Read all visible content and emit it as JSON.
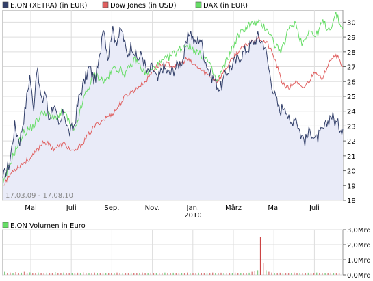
{
  "chart_data": [
    {
      "type": "line",
      "legend": [
        {
          "name": "E.ON (XETRA) (in EUR)",
          "color": "#33406a"
        },
        {
          "name": "Dow Jones (in USD)",
          "color": "#e06060"
        },
        {
          "name": "DAX (in EUR)",
          "color": "#66dd66"
        }
      ],
      "y_ticks": [
        "18",
        "19",
        "20",
        "21",
        "22",
        "23",
        "24",
        "25",
        "26",
        "27",
        "28",
        "29",
        "30"
      ],
      "ylim": [
        18,
        30.8
      ],
      "x_ticks": [
        "Mai",
        "Juli",
        "Sep.",
        "Nov.",
        "Jan.",
        "März",
        "Mai",
        "Juli"
      ],
      "x_year_label": "2010",
      "date_range_label": "17.03.09 - 17.08.10",
      "grid": true,
      "series": [
        {
          "name": "E.ON (XETRA) (in EUR)",
          "color": "#33406a",
          "fill": "#e8eaf7",
          "points": [
            [
              0,
              19.5
            ],
            [
              0.02,
              20.5
            ],
            [
              0.035,
              23.0
            ],
            [
              0.05,
              22.0
            ],
            [
              0.065,
              24.0
            ],
            [
              0.08,
              26.5
            ],
            [
              0.09,
              24.0
            ],
            [
              0.1,
              27.0
            ],
            [
              0.115,
              24.5
            ],
            [
              0.125,
              25.5
            ],
            [
              0.135,
              23.5
            ],
            [
              0.15,
              24.5
            ],
            [
              0.165,
              22.8
            ],
            [
              0.18,
              24.0
            ],
            [
              0.195,
              22.5
            ],
            [
              0.21,
              23.0
            ],
            [
              0.225,
              25.0
            ],
            [
              0.24,
              26.0
            ],
            [
              0.255,
              27.0
            ],
            [
              0.27,
              26.0
            ],
            [
              0.285,
              27.5
            ],
            [
              0.295,
              30.0
            ],
            [
              0.31,
              27.5
            ],
            [
              0.32,
              29.5
            ],
            [
              0.335,
              28.8
            ],
            [
              0.35,
              29.5
            ],
            [
              0.365,
              27.8
            ],
            [
              0.38,
              28.5
            ],
            [
              0.395,
              27.5
            ],
            [
              0.41,
              27.8
            ],
            [
              0.425,
              26.5
            ],
            [
              0.44,
              27.0
            ],
            [
              0.455,
              26.0
            ],
            [
              0.47,
              27.0
            ],
            [
              0.49,
              26.5
            ],
            [
              0.51,
              27.0
            ],
            [
              0.53,
              27.5
            ],
            [
              0.55,
              29.5
            ],
            [
              0.565,
              28.5
            ],
            [
              0.58,
              29.0
            ],
            [
              0.595,
              27.5
            ],
            [
              0.61,
              26.5
            ],
            [
              0.625,
              26.0
            ],
            [
              0.64,
              25.5
            ],
            [
              0.655,
              26.5
            ],
            [
              0.67,
              27.0
            ],
            [
              0.69,
              27.5
            ],
            [
              0.71,
              28.0
            ],
            [
              0.73,
              28.5
            ],
            [
              0.75,
              29.0
            ],
            [
              0.77,
              28.5
            ],
            [
              0.785,
              26.5
            ],
            [
              0.8,
              25.0
            ],
            [
              0.815,
              24.0
            ],
            [
              0.83,
              24.5
            ],
            [
              0.845,
              23.0
            ],
            [
              0.86,
              23.8
            ],
            [
              0.875,
              22.5
            ],
            [
              0.89,
              22.0
            ],
            [
              0.905,
              22.8
            ],
            [
              0.92,
              22.0
            ],
            [
              0.935,
              22.5
            ],
            [
              0.95,
              23.0
            ],
            [
              0.965,
              23.8
            ],
            [
              0.98,
              23.2
            ],
            [
              1.0,
              22.8
            ]
          ]
        },
        {
          "name": "Dow Jones (in USD)",
          "color": "#e06060",
          "points": [
            [
              0,
              19.0
            ],
            [
              0.03,
              20.0
            ],
            [
              0.06,
              20.5
            ],
            [
              0.09,
              21.0
            ],
            [
              0.12,
              22.0
            ],
            [
              0.15,
              21.5
            ],
            [
              0.18,
              21.8
            ],
            [
              0.21,
              21.2
            ],
            [
              0.24,
              22.0
            ],
            [
              0.27,
              23.0
            ],
            [
              0.3,
              23.5
            ],
            [
              0.33,
              24.0
            ],
            [
              0.36,
              25.0
            ],
            [
              0.39,
              25.5
            ],
            [
              0.42,
              26.0
            ],
            [
              0.45,
              27.0
            ],
            [
              0.48,
              27.2
            ],
            [
              0.51,
              27.0
            ],
            [
              0.54,
              27.5
            ],
            [
              0.57,
              27.0
            ],
            [
              0.6,
              26.5
            ],
            [
              0.63,
              26.0
            ],
            [
              0.66,
              27.0
            ],
            [
              0.69,
              28.0
            ],
            [
              0.72,
              28.5
            ],
            [
              0.75,
              29.0
            ],
            [
              0.78,
              28.5
            ],
            [
              0.8,
              27.5
            ],
            [
              0.82,
              26.0
            ],
            [
              0.84,
              25.5
            ],
            [
              0.86,
              26.0
            ],
            [
              0.88,
              25.5
            ],
            [
              0.9,
              26.0
            ],
            [
              0.92,
              26.8
            ],
            [
              0.94,
              26.0
            ],
            [
              0.96,
              27.5
            ],
            [
              0.98,
              27.8
            ],
            [
              1.0,
              27.0
            ]
          ]
        },
        {
          "name": "DAX (in EUR)",
          "color": "#66dd66",
          "points": [
            [
              0,
              19.0
            ],
            [
              0.03,
              21.0
            ],
            [
              0.06,
              22.5
            ],
            [
              0.09,
              23.0
            ],
            [
              0.12,
              24.0
            ],
            [
              0.15,
              23.5
            ],
            [
              0.18,
              24.0
            ],
            [
              0.21,
              22.5
            ],
            [
              0.24,
              25.0
            ],
            [
              0.27,
              26.5
            ],
            [
              0.3,
              26.0
            ],
            [
              0.33,
              27.0
            ],
            [
              0.36,
              26.5
            ],
            [
              0.39,
              27.5
            ],
            [
              0.42,
              26.5
            ],
            [
              0.45,
              27.0
            ],
            [
              0.48,
              27.5
            ],
            [
              0.51,
              28.0
            ],
            [
              0.54,
              28.5
            ],
            [
              0.57,
              28.0
            ],
            [
              0.6,
              27.5
            ],
            [
              0.63,
              26.0
            ],
            [
              0.66,
              27.5
            ],
            [
              0.69,
              29.0
            ],
            [
              0.72,
              29.8
            ],
            [
              0.75,
              30.0
            ],
            [
              0.78,
              29.5
            ],
            [
              0.8,
              28.5
            ],
            [
              0.82,
              28.0
            ],
            [
              0.84,
              29.5
            ],
            [
              0.86,
              30.0
            ],
            [
              0.88,
              28.5
            ],
            [
              0.9,
              29.5
            ],
            [
              0.92,
              29.0
            ],
            [
              0.94,
              30.0
            ],
            [
              0.96,
              29.5
            ],
            [
              0.98,
              30.5
            ],
            [
              1.0,
              29.5
            ]
          ]
        }
      ]
    },
    {
      "type": "bar",
      "legend": [
        {
          "name": "E.ON Volumen in Euro",
          "color": "#66dd66"
        }
      ],
      "y_ticks": [
        "0,0Mrd",
        "1,0Mrd",
        "2,0Mrd",
        "3,0Mrd"
      ],
      "ylim": [
        0,
        3.0
      ],
      "grid": true,
      "series": [
        {
          "name": "E.ON Volumen in Euro",
          "color": "#cc6666",
          "values": [
            0.2,
            0.1,
            0.15,
            0.12,
            0.18,
            0.1,
            0.14,
            0.2,
            0.11,
            0.16,
            0.13,
            0.1,
            0.15,
            0.12,
            0.1,
            0.14,
            0.11,
            0.13,
            0.18,
            0.1,
            0.12,
            0.15,
            0.11,
            0.13,
            0.1,
            0.12,
            0.14,
            0.1,
            0.16,
            0.12,
            0.11,
            0.13,
            0.15,
            0.1,
            0.12,
            0.14,
            0.11,
            0.13,
            0.1,
            0.12,
            0.15,
            0.11,
            0.13,
            0.1,
            0.12,
            0.14,
            0.1,
            0.13,
            0.11,
            0.15,
            0.12,
            0.1,
            0.14,
            0.11,
            0.13,
            0.12,
            0.1,
            0.15,
            0.11,
            0.12,
            0.14,
            0.1,
            0.13,
            0.11,
            0.12,
            0.15,
            0.1,
            0.13,
            0.11,
            0.14,
            0.12,
            0.1,
            0.13,
            0.11,
            0.15,
            0.12,
            0.1,
            0.14,
            0.11,
            0.13,
            0.12,
            0.1,
            0.15,
            0.11,
            0.13,
            0.12,
            0.1,
            0.14,
            0.2,
            0.25,
            0.3,
            2.5,
            0.8,
            0.3,
            0.2,
            0.15,
            0.12,
            0.1,
            0.14,
            0.11,
            0.13,
            0.12,
            0.1,
            0.15,
            0.11,
            0.13,
            0.12,
            0.1,
            0.14,
            0.11,
            0.12,
            0.15,
            0.1,
            0.13,
            0.11,
            0.12,
            0.14,
            0.1,
            0.13,
            0.11
          ]
        }
      ]
    }
  ]
}
